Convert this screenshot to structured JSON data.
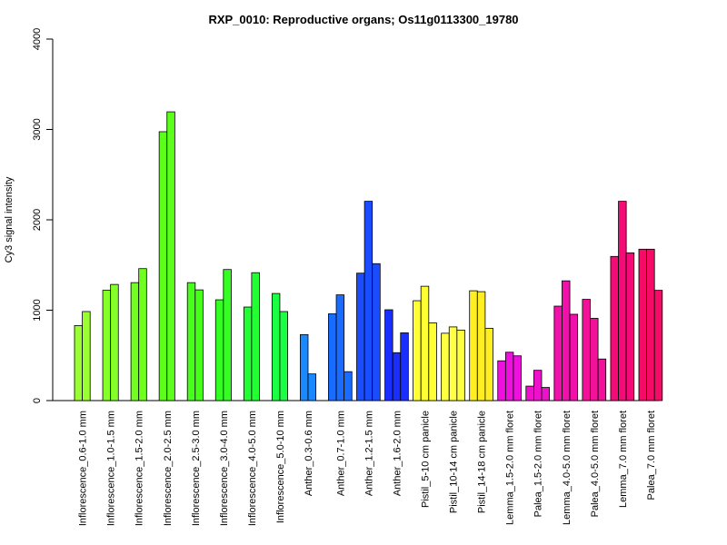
{
  "chart_data": {
    "type": "bar",
    "title": "RXP_0010: Reproductive organs; Os11g0113300_19780",
    "ylabel": "Cy3 signal intensity",
    "xlabel": "",
    "ylim": [
      0,
      4000
    ],
    "yticks": [
      "0",
      "1000",
      "2000",
      "3000",
      "4000"
    ],
    "grid": false,
    "groups": [
      {
        "label": "Inflorescence_0.6-1.0 mm",
        "color": "#99ff33",
        "values": [
          830,
          985
        ]
      },
      {
        "label": "Inflorescence_1.0-1.5 mm",
        "color": "#85ff29",
        "values": [
          1220,
          1285
        ]
      },
      {
        "label": "Inflorescence_1.5-2.0 mm",
        "color": "#70ff1f",
        "values": [
          1305,
          1460
        ]
      },
      {
        "label": "Inflorescence_2.0-2.5 mm",
        "color": "#5cff1a",
        "values": [
          2975,
          3195
        ]
      },
      {
        "label": "Inflorescence_2.5-3.0 mm",
        "color": "#47ff1a",
        "values": [
          1305,
          1225
        ]
      },
      {
        "label": "Inflorescence_3.0-4.0 mm",
        "color": "#33ff22",
        "values": [
          1115,
          1450
        ]
      },
      {
        "label": "Inflorescence_4.0-5.0 mm",
        "color": "#22ff33",
        "values": [
          1035,
          1415
        ]
      },
      {
        "label": "Inflorescence_5.0-10 mm",
        "color": "#1aff44",
        "values": [
          1185,
          985
        ]
      },
      {
        "label": "Anther_0.3-0.6 mm",
        "color": "#1a88ff",
        "values": [
          730,
          295
        ]
      },
      {
        "label": "Anther_0.7-1.0 mm",
        "color": "#1a6bff",
        "values": [
          960,
          1170,
          320
        ]
      },
      {
        "label": "Anther_1.2-1.5 mm",
        "color": "#1a4dff",
        "values": [
          1410,
          2205,
          1515
        ]
      },
      {
        "label": "Anther_1.6-2.0 mm",
        "color": "#1a2eff",
        "values": [
          1005,
          530,
          750
        ]
      },
      {
        "label": "Pistil_5-10 cm panicle",
        "color": "#ffff33",
        "values": [
          1105,
          1265,
          860
        ]
      },
      {
        "label": "Pistil_10-14 cm panicle",
        "color": "#ffff44",
        "values": [
          745,
          815,
          780
        ]
      },
      {
        "label": "Pistil_14-18 cm panicle",
        "color": "#ffee22",
        "values": [
          1215,
          1205,
          800
        ]
      },
      {
        "label": "Lemma_1.5-2.0 mm floret",
        "color": "#ee11dd",
        "values": [
          440,
          535,
          495
        ]
      },
      {
        "label": "Palea_1.5-2.0 mm floret",
        "color": "#ee11cc",
        "values": [
          160,
          335,
          145
        ]
      },
      {
        "label": "Lemma_4.0-5.0 mm floret",
        "color": "#f011aa",
        "values": [
          1045,
          1325,
          955
        ]
      },
      {
        "label": "Palea_4.0-5.0 mm floret",
        "color": "#f21199",
        "values": [
          1120,
          910,
          460
        ]
      },
      {
        "label": "Lemma_7.0 mm floret",
        "color": "#f40b77",
        "values": [
          1595,
          2205,
          1635
        ]
      },
      {
        "label": "Palea_7.0 mm floret",
        "color": "#f60b66",
        "values": [
          1675,
          1675,
          1220
        ]
      }
    ]
  }
}
